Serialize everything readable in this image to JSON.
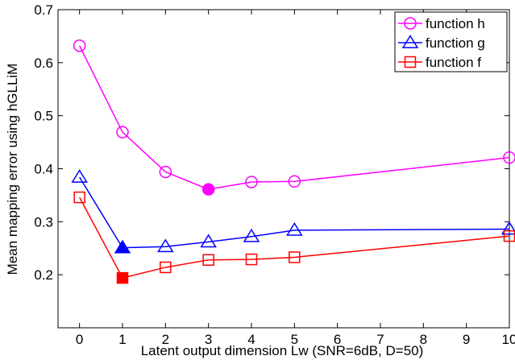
{
  "chart_data": {
    "type": "line",
    "xlabel": "Latent output dimension Lw (SNR=6dB, D=50)",
    "ylabel": "Mean mapping error using hGLLiM",
    "xlim": [
      -0.5,
      10
    ],
    "ylim": [
      0.1,
      0.7
    ],
    "xticks": [
      0,
      1,
      2,
      3,
      4,
      5,
      6,
      7,
      8,
      9,
      10
    ],
    "yticks": [
      0.2,
      0.3,
      0.4,
      0.5,
      0.6,
      0.7
    ],
    "x": [
      0,
      1,
      2,
      3,
      4,
      5,
      10
    ],
    "legend_position": "top-right",
    "grid": false,
    "series": [
      {
        "name": "function h",
        "color": "#ff00ff",
        "marker": "circle",
        "values": [
          0.632,
          0.469,
          0.394,
          0.361,
          0.375,
          0.376,
          0.421
        ],
        "filled_index": 3
      },
      {
        "name": "function g",
        "color": "#0000ff",
        "marker": "triangle",
        "values": [
          0.384,
          0.251,
          0.253,
          0.262,
          0.272,
          0.284,
          0.286
        ],
        "filled_index": 1
      },
      {
        "name": "function f",
        "color": "#ff0000",
        "marker": "square",
        "values": [
          0.346,
          0.194,
          0.214,
          0.228,
          0.229,
          0.233,
          0.273
        ],
        "filled_index": 1
      }
    ]
  }
}
